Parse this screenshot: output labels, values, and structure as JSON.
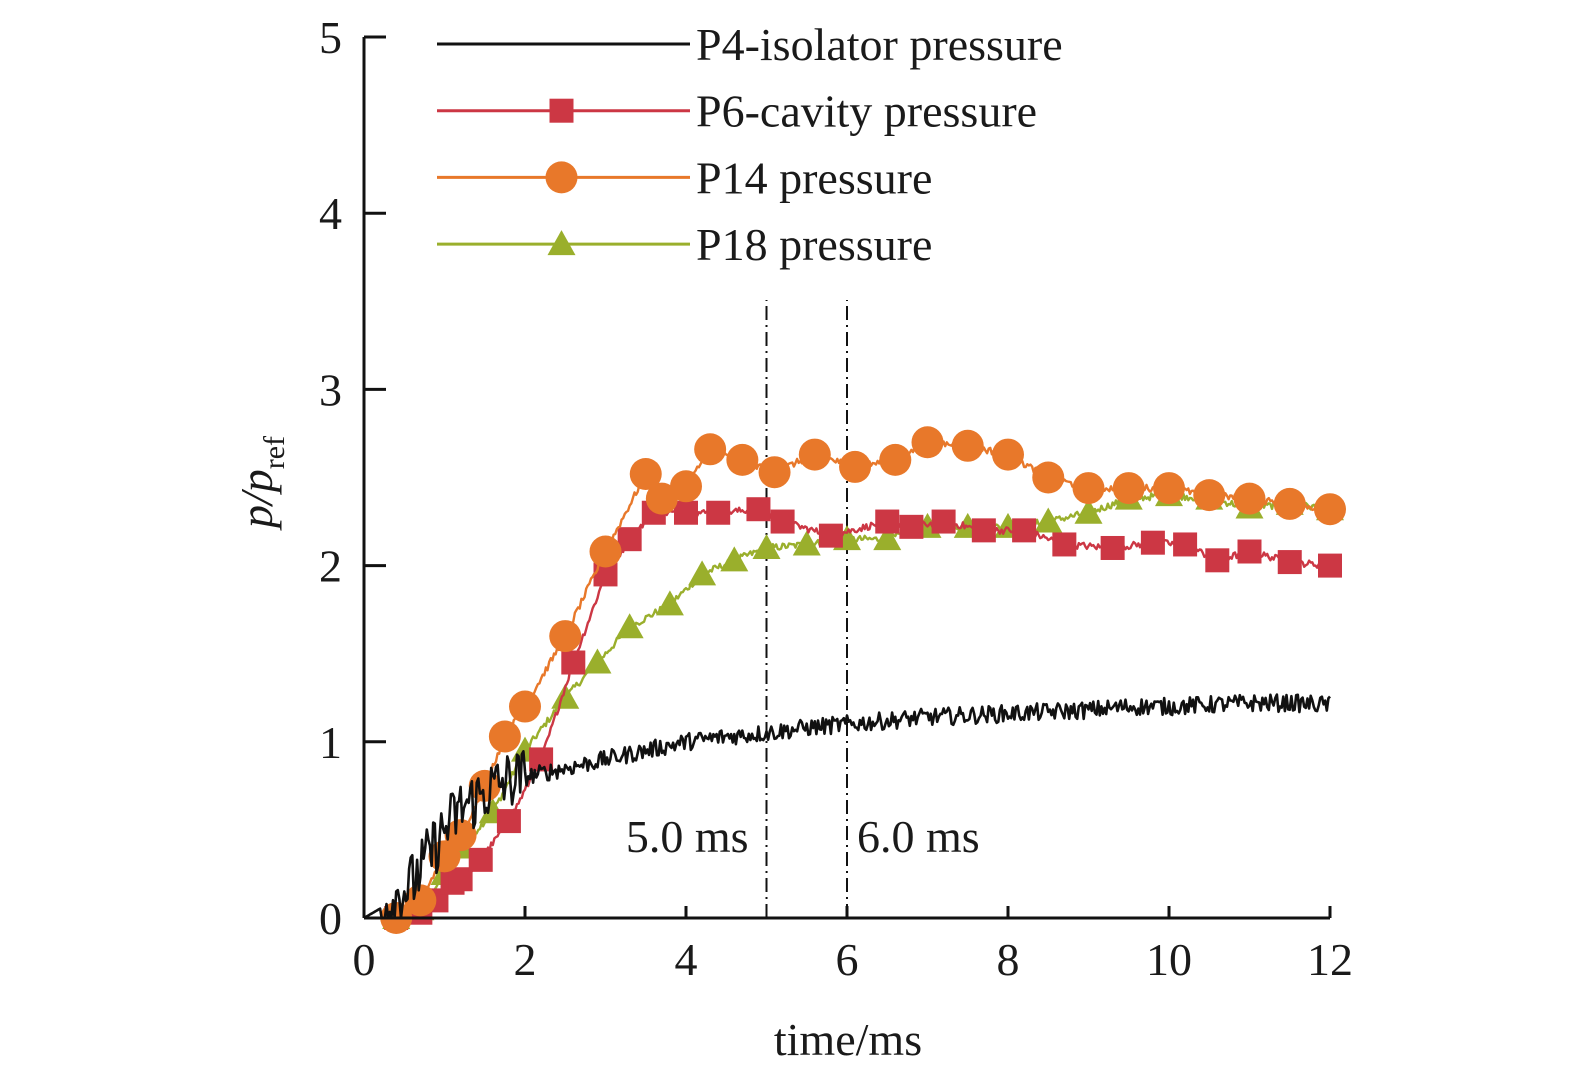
{
  "chart_data": {
    "type": "line",
    "xlabel": "time/ms",
    "ylabel": {
      "main": "p/p",
      "subscript": "ref"
    },
    "xlim": [
      0,
      12
    ],
    "ylim": [
      0,
      5
    ],
    "xticks": [
      "0",
      "2",
      "4",
      "6",
      "8",
      "10",
      "12"
    ],
    "yticks": [
      "0",
      "1",
      "2",
      "3",
      "4",
      "5"
    ],
    "grid": false,
    "legend_position": "top",
    "vlines": [
      {
        "x": 5.0,
        "label": "5.0 ms",
        "style": "dash-dot"
      },
      {
        "x": 6.0,
        "label": "6.0 ms",
        "style": "dash-dot"
      }
    ],
    "series": [
      {
        "name": "P4-isolator pressure",
        "color": "#111111",
        "marker": "none",
        "noise": 0.05,
        "x": [
          0,
          0.3,
          0.6,
          0.8,
          1.0,
          1.2,
          1.4,
          1.6,
          1.8,
          2.0,
          2.5,
          3.0,
          3.5,
          4.0,
          4.5,
          5.0,
          5.5,
          6.0,
          6.5,
          7.0,
          7.5,
          8.0,
          8.5,
          9.0,
          9.5,
          10.0,
          10.5,
          11.0,
          11.5,
          12.0
        ],
        "y": [
          0,
          0.08,
          0.2,
          0.35,
          0.5,
          0.62,
          0.68,
          0.74,
          0.78,
          0.8,
          0.85,
          0.9,
          0.95,
          1.0,
          1.03,
          1.05,
          1.08,
          1.1,
          1.12,
          1.14,
          1.15,
          1.16,
          1.17,
          1.18,
          1.2,
          1.2,
          1.21,
          1.22,
          1.22,
          1.21
        ]
      },
      {
        "name": "P6-cavity pressure",
        "color": "#cc3744",
        "marker": "square",
        "noise": 0.02,
        "x": [
          0,
          0.4,
          0.7,
          0.9,
          1.1,
          1.2,
          1.45,
          1.8,
          2.2,
          2.6,
          3.0,
          3.3,
          3.6,
          4.0,
          4.4,
          4.9,
          5.2,
          5.8,
          6.5,
          6.8,
          7.2,
          7.7,
          8.2,
          8.7,
          9.3,
          9.8,
          10.2,
          10.6,
          11.0,
          11.5,
          12.0
        ],
        "y": [
          0,
          0.0,
          0.03,
          0.1,
          0.2,
          0.22,
          0.33,
          0.55,
          0.9,
          1.45,
          1.95,
          2.15,
          2.3,
          2.3,
          2.3,
          2.32,
          2.25,
          2.17,
          2.25,
          2.22,
          2.25,
          2.2,
          2.2,
          2.12,
          2.1,
          2.13,
          2.12,
          2.03,
          2.08,
          2.02,
          2.0
        ]
      },
      {
        "name": "P14 pressure",
        "color": "#e8782a",
        "marker": "circle",
        "noise": 0.02,
        "x": [
          0,
          0.4,
          0.7,
          1.0,
          1.2,
          1.5,
          1.75,
          2.0,
          2.5,
          3.0,
          3.5,
          3.7,
          4.0,
          4.3,
          4.7,
          5.1,
          5.6,
          6.1,
          6.6,
          7.0,
          7.5,
          8.0,
          8.5,
          9.0,
          9.5,
          10.0,
          10.5,
          11.0,
          11.5,
          12.0
        ],
        "y": [
          0,
          0.0,
          0.1,
          0.35,
          0.47,
          0.75,
          1.03,
          1.2,
          1.6,
          2.08,
          2.52,
          2.38,
          2.45,
          2.66,
          2.6,
          2.53,
          2.63,
          2.56,
          2.6,
          2.7,
          2.68,
          2.63,
          2.5,
          2.44,
          2.44,
          2.44,
          2.4,
          2.38,
          2.35,
          2.32
        ]
      },
      {
        "name": "P18 pressure",
        "color": "#9aaf2c",
        "marker": "triangle",
        "noise": 0.02,
        "x": [
          0,
          0.4,
          0.7,
          1.0,
          1.2,
          1.6,
          2.0,
          2.5,
          2.9,
          3.3,
          3.8,
          4.2,
          4.6,
          5.0,
          5.5,
          6.0,
          6.5,
          7.0,
          7.5,
          8.0,
          8.5,
          9.0,
          9.5,
          10.0,
          10.5,
          11.0,
          11.5,
          12.0
        ],
        "y": [
          0,
          0.0,
          0.05,
          0.25,
          0.4,
          0.6,
          0.95,
          1.25,
          1.45,
          1.65,
          1.78,
          1.95,
          2.03,
          2.1,
          2.12,
          2.15,
          2.15,
          2.22,
          2.22,
          2.22,
          2.25,
          2.3,
          2.38,
          2.4,
          2.38,
          2.33,
          2.35,
          2.32
        ]
      }
    ]
  }
}
